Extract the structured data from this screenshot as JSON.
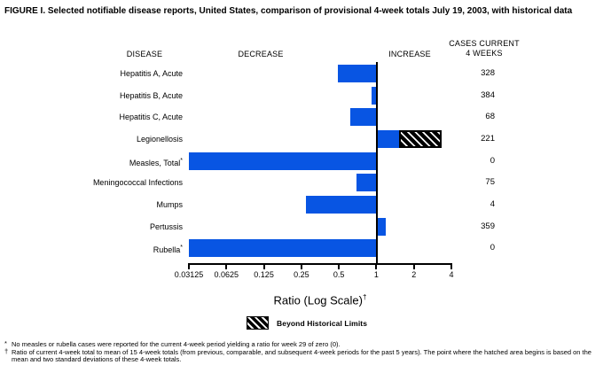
{
  "title": "FIGURE I. Selected notifiable disease reports, United States, comparison of provisional 4-week totals July 19, 2003, with historical data",
  "columns": {
    "disease": "DISEASE",
    "decrease": "DECREASE",
    "increase": "INCREASE",
    "cases_line1": "CASES CURRENT",
    "cases_line2": "4 WEEKS"
  },
  "chart_data": {
    "type": "bar",
    "orientation": "horizontal",
    "scale": "log2",
    "title": "Selected notifiable disease reports, ratio of current 4-week total to historical mean",
    "axis": {
      "label": "Ratio (Log Scale)",
      "label_superscript": "†",
      "ticks": [
        "0.03125",
        "0.0625",
        "0.125",
        "0.25",
        "0.5",
        "1",
        "2",
        "4"
      ],
      "min": 0.03125,
      "max": 4,
      "baseline": 1
    },
    "bar_color": "#0855e3",
    "hatch_colors": {
      "background": "#000000",
      "stripes": "#ffffff"
    },
    "legend": {
      "swatch": "hatched-box",
      "label": "Beyond Historical Limits",
      "position": "below-axis"
    },
    "rows": [
      {
        "disease": "Hepatitis A, Acute",
        "superscript": "",
        "ratio": 0.49,
        "bar_to_axis_min": false,
        "beyond_historical_limits": false,
        "cases": "328"
      },
      {
        "disease": "Hepatitis B, Acute",
        "superscript": "",
        "ratio": 0.91,
        "bar_to_axis_min": false,
        "beyond_historical_limits": false,
        "cases": "384"
      },
      {
        "disease": "Hepatitis C, Acute",
        "superscript": "",
        "ratio": 0.62,
        "bar_to_axis_min": false,
        "beyond_historical_limits": false,
        "cases": "68"
      },
      {
        "disease": "Legionellosis",
        "superscript": "",
        "ratio": 1.52,
        "bar_to_axis_min": false,
        "beyond_historical_limits": true,
        "hatch_from": 1.52,
        "hatch_to": 3.33,
        "cases": "221"
      },
      {
        "disease": "Measles, Total",
        "superscript": "*",
        "ratio": 0,
        "bar_to_axis_min": true,
        "beyond_historical_limits": false,
        "cases": "0"
      },
      {
        "disease": "Meningococcal Infections",
        "superscript": "",
        "ratio": 0.69,
        "bar_to_axis_min": false,
        "beyond_historical_limits": false,
        "cases": "75"
      },
      {
        "disease": "Mumps",
        "superscript": "",
        "ratio": 0.27,
        "bar_to_axis_min": false,
        "beyond_historical_limits": false,
        "cases": "4"
      },
      {
        "disease": "Pertussis",
        "superscript": "",
        "ratio": 1.18,
        "bar_to_axis_min": false,
        "beyond_historical_limits": false,
        "cases": "359"
      },
      {
        "disease": "Rubella",
        "superscript": "*",
        "ratio": 0,
        "bar_to_axis_min": true,
        "beyond_historical_limits": false,
        "cases": "0"
      }
    ]
  },
  "footnotes": [
    {
      "marker": "*",
      "text": "No measles or rubella cases were reported for the current 4-week period yielding a ratio for week 29 of zero (0)."
    },
    {
      "marker": "†",
      "text": "Ratio of current 4-week total to mean of 15 4-week totals (from previous, comparable, and subsequent 4-week periods for the past 5 years). The point where the hatched area begins is based on the mean and two standard deviations of these 4-week totals."
    }
  ]
}
